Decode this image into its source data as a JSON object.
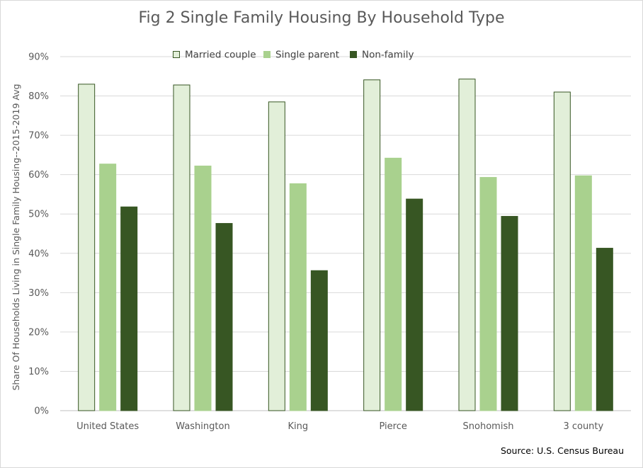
{
  "chart_data": {
    "type": "bar",
    "title": "Fig 2 Single Family Housing By Household Type",
    "ylabel": "Share Of Households Living in Single Family Housing--2015-2019 Avg",
    "xlabel": "",
    "source": "Source: U.S. Census Bureau",
    "categories": [
      "United States",
      "Washington",
      "King",
      "Pierce",
      "Snohomish",
      "3 county"
    ],
    "series": [
      {
        "name": "Married couple",
        "values": [
          83.0,
          82.8,
          78.5,
          84.1,
          84.3,
          81.0
        ],
        "color": "#e2efd9",
        "stroke": "#375623"
      },
      {
        "name": "Single parent",
        "values": [
          62.7,
          62.2,
          57.7,
          64.2,
          59.3,
          59.7
        ],
        "color": "#a9d18e",
        "stroke": "#a9d18e"
      },
      {
        "name": "Non-family",
        "values": [
          51.8,
          47.6,
          35.6,
          53.8,
          49.4,
          41.3
        ],
        "color": "#375623",
        "stroke": "#375623"
      }
    ],
    "ylim": [
      0,
      90
    ],
    "yticks": [
      "0%",
      "10%",
      "20%",
      "30%",
      "40%",
      "50%",
      "60%",
      "70%",
      "80%",
      "90%"
    ],
    "grid": true,
    "legend": "top-center"
  }
}
